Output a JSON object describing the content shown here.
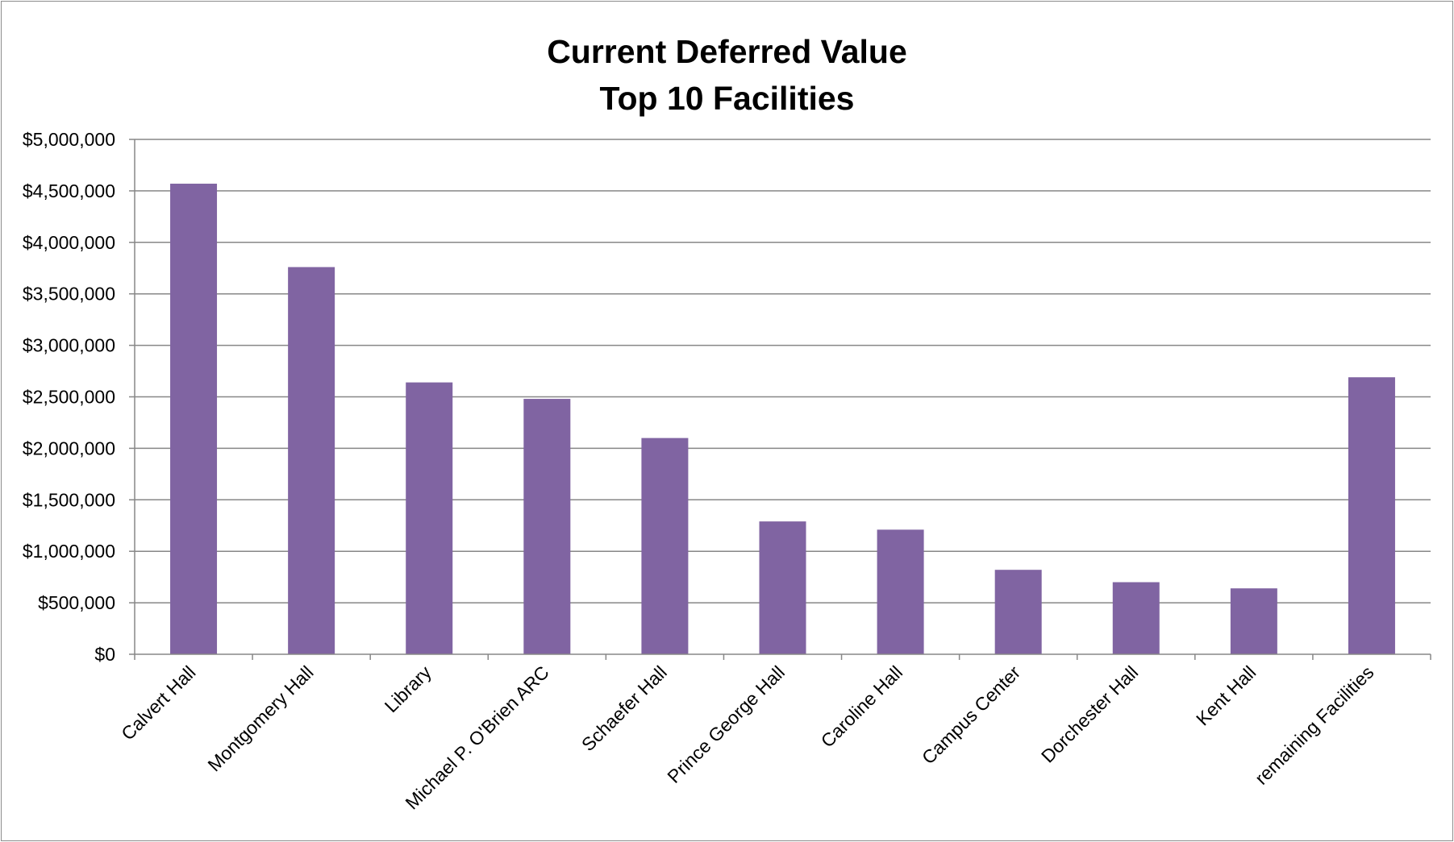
{
  "chart_data": {
    "type": "bar",
    "title_lines": [
      "Current Deferred Value",
      "Top 10 Facilities"
    ],
    "xlabel": "",
    "ylabel": "",
    "categories": [
      "Calvert Hall",
      "Montgomery Hall",
      "Library",
      "Michael P. O'Brien ARC",
      "Schaefer Hall",
      "Prince George Hall",
      "Caroline Hall",
      "Campus Center",
      "Dorchester Hall",
      "Kent Hall",
      "remaining Facilities"
    ],
    "values": [
      4570000,
      3760000,
      2640000,
      2480000,
      2100000,
      1290000,
      1210000,
      820000,
      700000,
      640000,
      2690000
    ],
    "ylim": [
      0,
      5000000
    ],
    "ytick_values": [
      0,
      500000,
      1000000,
      1500000,
      2000000,
      2500000,
      3000000,
      3500000,
      4000000,
      4500000,
      5000000
    ],
    "ytick_labels": [
      "$0",
      "$500,000",
      "$1,000,000",
      "$1,500,000",
      "$2,000,000",
      "$2,500,000",
      "$3,000,000",
      "$3,500,000",
      "$4,000,000",
      "$4,500,000",
      "$5,000,000"
    ],
    "grid": true,
    "legend": "none",
    "bar_color": "#8064a2",
    "grid_color": "#878787"
  }
}
